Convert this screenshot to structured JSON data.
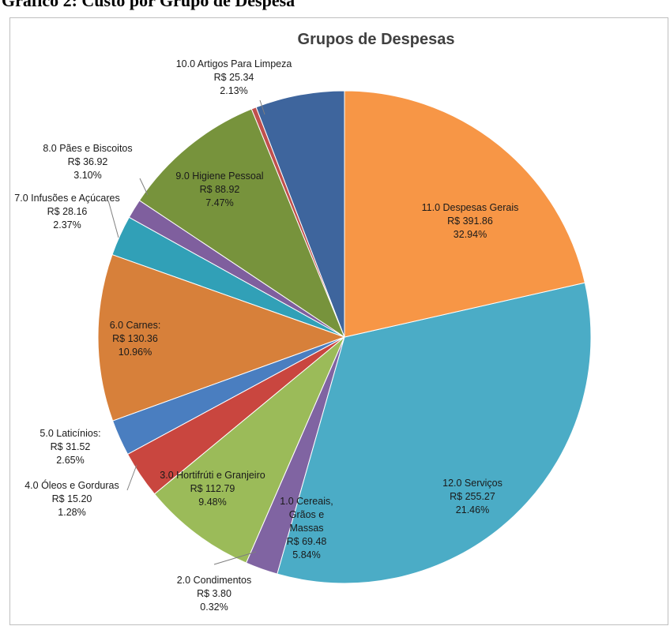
{
  "document": {
    "caption": "Gráfico 2: Custo por Grupo de Despesa"
  },
  "chart_data": {
    "type": "pie",
    "title": "Grupos de Despesas",
    "slices": [
      {
        "category": "1.0 Cereais, Grãos e Massas",
        "lines": [
          "1.0 Cereais,",
          "Grãos e",
          "Massas",
          "R$ 69.48",
          "5.84%"
        ],
        "value": 69.48,
        "percent": 5.84,
        "color": "#3E659D"
      },
      {
        "category": "2.0 Condimentos",
        "lines": [
          "2.0 Condimentos",
          "R$ 3.80",
          "0.32%"
        ],
        "value": 3.8,
        "percent": 0.32,
        "color": "#C0504D"
      },
      {
        "category": "3.0 Hortifrúti e Granjeiro",
        "lines": [
          "3.0 Hortifrúti e Granjeiro",
          "R$ 112.79",
          "9.48%"
        ],
        "value": 112.79,
        "percent": 9.48,
        "color": "#77933C"
      },
      {
        "category": "4.0 Óleos e Gorduras",
        "lines": [
          "4.0 Óleos e Gorduras",
          "R$ 15.20",
          "1.28%"
        ],
        "value": 15.2,
        "percent": 1.28,
        "color": "#7F5F9E"
      },
      {
        "category": "5.0 Laticínios:",
        "lines": [
          "5.0 Laticínios:",
          "R$ 31.52",
          "2.65%"
        ],
        "value": 31.52,
        "percent": 2.65,
        "color": "#31A0B7"
      },
      {
        "category": "6.0 Carnes:",
        "lines": [
          "6.0 Carnes:",
          "R$ 130.36",
          "10.96%"
        ],
        "value": 130.36,
        "percent": 10.96,
        "color": "#D7803A"
      },
      {
        "category": "7.0 Infusões e Açúcares",
        "lines": [
          "7.0 Infusões e Açúcares",
          "R$ 28.16",
          "2.37%"
        ],
        "value": 28.16,
        "percent": 2.37,
        "color": "#4A7EC0"
      },
      {
        "category": "8.0 Pães e Biscoitos",
        "lines": [
          "8.0 Pães e Biscoitos",
          "R$ 36.92",
          "3.10%"
        ],
        "value": 36.92,
        "percent": 3.1,
        "color": "#C9463F"
      },
      {
        "category": "9.0 Higiene Pessoal",
        "lines": [
          "9.0 Higiene Pessoal",
          "R$ 88.92",
          "7.47%"
        ],
        "value": 88.92,
        "percent": 7.47,
        "color": "#9BBB59"
      },
      {
        "category": "10.0 Artigos Para Limpeza",
        "lines": [
          "10.0 Artigos Para Limpeza",
          "R$ 25.34",
          "2.13%"
        ],
        "value": 25.34,
        "percent": 2.13,
        "color": "#8064A2"
      },
      {
        "category": "11.0 Despesas Gerais",
        "lines": [
          "11.0 Despesas Gerais",
          "R$ 391.86",
          "32.94%"
        ],
        "value": 391.86,
        "percent": 32.94,
        "color": "#4BACC6"
      },
      {
        "category": "12.0 Serviços",
        "lines": [
          "12.0 Serviços",
          "R$ 255.27",
          "21.46%"
        ],
        "value": 255.27,
        "percent": 21.46,
        "color": "#F79646"
      }
    ],
    "legend": "none"
  }
}
